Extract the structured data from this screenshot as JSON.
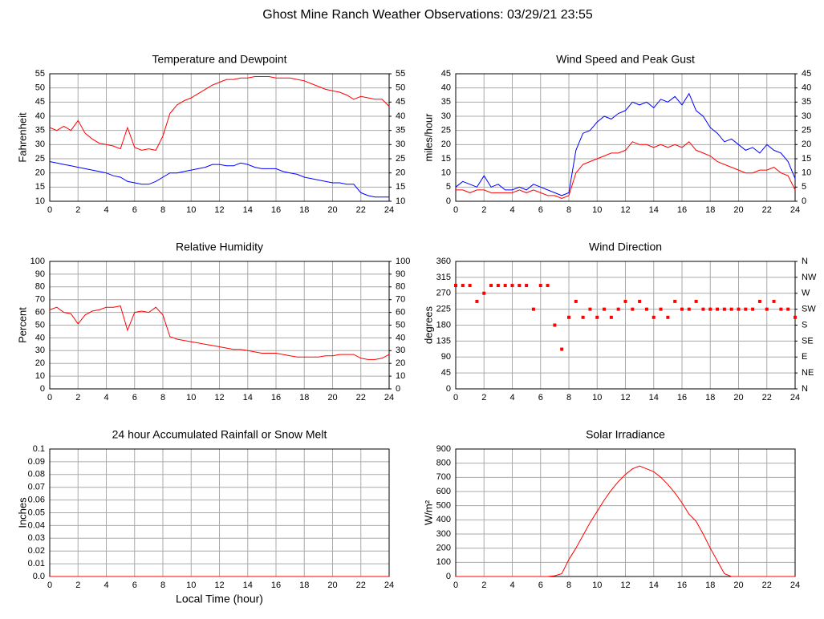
{
  "title": "Ghost Mine Ranch Weather Observations: 03/29/21 23:55",
  "chart_data": [
    {
      "type": "line",
      "title": "Temperature and Dewpoint",
      "ylabel": "Fahrenheit",
      "x": [
        0,
        0.5,
        1,
        1.5,
        2,
        2.5,
        3,
        3.5,
        4,
        4.5,
        5,
        5.5,
        6,
        6.5,
        7,
        7.5,
        8,
        8.5,
        9,
        9.5,
        10,
        10.5,
        11,
        11.5,
        12,
        12.5,
        13,
        13.5,
        14,
        14.5,
        15,
        15.5,
        16,
        16.5,
        17,
        17.5,
        18,
        18.5,
        19,
        19.5,
        20,
        20.5,
        21,
        21.5,
        22,
        22.5,
        23,
        23.5,
        24
      ],
      "series": [
        {
          "color": "#ff0000",
          "values": [
            36,
            35,
            36.5,
            35,
            38.5,
            34,
            32,
            30.5,
            30,
            29.5,
            28.5,
            36,
            29,
            28,
            28.5,
            28,
            33,
            41,
            44,
            45.5,
            46.5,
            48,
            49.5,
            51,
            52,
            53,
            53,
            53.5,
            53.5,
            54,
            54,
            54,
            53.5,
            53.5,
            53.5,
            53,
            52.5,
            51.5,
            50.5,
            49.5,
            49,
            48.5,
            47.5,
            46,
            47,
            46.5,
            46,
            46,
            43.5
          ]
        },
        {
          "color": "#0000ff",
          "values": [
            24,
            23.5,
            23,
            22.5,
            22,
            21.5,
            21,
            20.5,
            20,
            19,
            18.5,
            17,
            16.5,
            16,
            16,
            17,
            18.5,
            20,
            20,
            20.5,
            21,
            21.5,
            22,
            23,
            23,
            22.5,
            22.5,
            23.5,
            23,
            22,
            21.5,
            21.5,
            21.5,
            20.5,
            20,
            19.5,
            18.5,
            18,
            17.5,
            17,
            16.5,
            16.5,
            16,
            16,
            13,
            12,
            11.5,
            11.5,
            11.5
          ]
        }
      ],
      "xlim": [
        0,
        24
      ],
      "xticks": [
        0,
        2,
        4,
        6,
        8,
        10,
        12,
        14,
        16,
        18,
        20,
        22,
        24
      ],
      "ylim": [
        10,
        55
      ],
      "yticks": [
        10,
        15,
        20,
        25,
        30,
        35,
        40,
        45,
        50,
        55
      ],
      "y2lim": [
        10,
        55
      ],
      "y2ticks": [
        10,
        15,
        20,
        25,
        30,
        35,
        40,
        45,
        50,
        55
      ],
      "grid": true
    },
    {
      "type": "line",
      "title": "Wind Speed and Peak Gust",
      "ylabel": "miles/hour",
      "x": [
        0,
        0.5,
        1,
        1.5,
        2,
        2.5,
        3,
        3.5,
        4,
        4.5,
        5,
        5.5,
        6,
        6.5,
        7,
        7.5,
        8,
        8.5,
        9,
        9.5,
        10,
        10.5,
        11,
        11.5,
        12,
        12.5,
        13,
        13.5,
        14,
        14.5,
        15,
        15.5,
        16,
        16.5,
        17,
        17.5,
        18,
        18.5,
        19,
        19.5,
        20,
        20.5,
        21,
        21.5,
        22,
        22.5,
        23,
        23.5,
        24
      ],
      "series": [
        {
          "color": "#0000ff",
          "values": [
            5,
            7,
            6,
            5,
            9,
            5,
            6,
            4,
            4,
            5,
            4,
            6,
            5,
            4,
            3,
            2,
            3,
            18,
            24,
            25,
            28,
            30,
            29,
            31,
            32,
            35,
            34,
            35,
            33,
            36,
            35,
            37,
            34,
            38,
            32,
            30,
            26,
            24,
            21,
            22,
            20,
            18,
            19,
            17,
            20,
            18,
            17,
            14,
            8
          ]
        },
        {
          "color": "#ff0000",
          "values": [
            4,
            4,
            3,
            4,
            4,
            3,
            3,
            3,
            3,
            4,
            3,
            4,
            3,
            2,
            2,
            1,
            2,
            10,
            13,
            14,
            15,
            16,
            17,
            17,
            18,
            21,
            20,
            20,
            19,
            20,
            19,
            20,
            19,
            21,
            18,
            17,
            16,
            14,
            13,
            12,
            11,
            10,
            10,
            11,
            11,
            12,
            10,
            9,
            4
          ]
        }
      ],
      "xlim": [
        0,
        24
      ],
      "xticks": [
        0,
        2,
        4,
        6,
        8,
        10,
        12,
        14,
        16,
        18,
        20,
        22,
        24
      ],
      "ylim": [
        0,
        45
      ],
      "yticks": [
        0,
        5,
        10,
        15,
        20,
        25,
        30,
        35,
        40,
        45
      ],
      "y2lim": [
        0,
        45
      ],
      "y2ticks": [
        0,
        5,
        10,
        15,
        20,
        25,
        30,
        35,
        40,
        45
      ],
      "grid": true
    },
    {
      "type": "line",
      "title": "Relative Humidity",
      "ylabel": "Percent",
      "x": [
        0,
        0.5,
        1,
        1.5,
        2,
        2.5,
        3,
        3.5,
        4,
        4.5,
        5,
        5.5,
        6,
        6.5,
        7,
        7.5,
        8,
        8.5,
        9,
        9.5,
        10,
        10.5,
        11,
        11.5,
        12,
        12.5,
        13,
        13.5,
        14,
        14.5,
        15,
        15.5,
        16,
        16.5,
        17,
        17.5,
        18,
        18.5,
        19,
        19.5,
        20,
        20.5,
        21,
        21.5,
        22,
        22.5,
        23,
        23.5,
        24
      ],
      "series": [
        {
          "color": "#ff0000",
          "values": [
            62,
            64,
            60,
            59,
            51,
            58,
            61,
            62,
            64,
            64,
            65,
            46,
            60,
            61,
            60,
            64,
            58,
            41,
            39,
            38,
            37,
            36,
            35,
            34,
            33,
            32,
            31,
            31,
            30,
            29,
            28,
            28,
            28,
            27,
            26,
            25,
            25,
            25,
            25,
            26,
            26,
            27,
            27,
            27,
            24,
            23,
            23,
            24,
            27
          ]
        }
      ],
      "xlim": [
        0,
        24
      ],
      "xticks": [
        0,
        2,
        4,
        6,
        8,
        10,
        12,
        14,
        16,
        18,
        20,
        22,
        24
      ],
      "ylim": [
        0,
        100
      ],
      "yticks": [
        0,
        10,
        20,
        30,
        40,
        50,
        60,
        70,
        80,
        90,
        100
      ],
      "y2lim": [
        0,
        100
      ],
      "y2ticks": [
        0,
        10,
        20,
        30,
        40,
        50,
        60,
        70,
        80,
        90,
        100
      ],
      "grid": true
    },
    {
      "type": "scatter",
      "title": "Wind Direction",
      "ylabel": "degrees",
      "x": [
        0,
        0.5,
        1,
        1.5,
        2,
        2.5,
        3,
        3.5,
        4,
        4.5,
        5,
        5.5,
        6,
        6.5,
        7,
        7.5,
        8,
        8.5,
        9,
        9.5,
        10,
        10.5,
        11,
        11.5,
        12,
        12.5,
        13,
        13.5,
        14,
        14.5,
        15,
        15.5,
        16,
        16.5,
        17,
        17.5,
        18,
        18.5,
        19,
        19.5,
        20,
        20.5,
        21,
        21.5,
        22,
        22.5,
        23,
        23.5,
        24
      ],
      "series": [
        {
          "color": "#ff0000",
          "values": [
            292,
            292,
            292,
            247,
            270,
            292,
            292,
            292,
            292,
            292,
            292,
            225,
            292,
            292,
            180,
            112,
            202,
            247,
            202,
            225,
            202,
            225,
            202,
            225,
            247,
            225,
            247,
            225,
            202,
            225,
            202,
            247,
            225,
            225,
            247,
            225,
            225,
            225,
            225,
            225,
            225,
            225,
            225,
            247,
            225,
            247,
            225,
            225,
            202
          ]
        }
      ],
      "xlim": [
        0,
        24
      ],
      "xticks": [
        0,
        2,
        4,
        6,
        8,
        10,
        12,
        14,
        16,
        18,
        20,
        22,
        24
      ],
      "ylim": [
        0,
        360
      ],
      "yticks": [
        0,
        45,
        90,
        135,
        180,
        225,
        270,
        315,
        360
      ],
      "y2lim": [
        0,
        360
      ],
      "y2ticks": [
        {
          "value": 0,
          "label": "N"
        },
        {
          "value": 45,
          "label": "NE"
        },
        {
          "value": 90,
          "label": "E"
        },
        {
          "value": 135,
          "label": "SE"
        },
        {
          "value": 180,
          "label": "S"
        },
        {
          "value": 225,
          "label": "SW"
        },
        {
          "value": 270,
          "label": "W"
        },
        {
          "value": 315,
          "label": "NW"
        },
        {
          "value": 360,
          "label": "N"
        }
      ],
      "grid": true
    },
    {
      "type": "line",
      "title": "24 hour Accumulated Rainfall or Snow Melt",
      "ylabel": "Inches",
      "xlabel": "Local Time (hour)",
      "x": [
        0,
        24
      ],
      "series": [
        {
          "color": "#ff0000",
          "values": [
            0,
            0
          ]
        }
      ],
      "xlim": [
        0,
        24
      ],
      "xticks": [
        0,
        2,
        4,
        6,
        8,
        10,
        12,
        14,
        16,
        18,
        20,
        22,
        24
      ],
      "ylim": [
        0,
        0.1
      ],
      "yticks": [
        {
          "value": 0,
          "label": "0.0"
        },
        0.01,
        0.02,
        0.03,
        0.04,
        0.05,
        0.06,
        0.07,
        0.08,
        0.09,
        0.1
      ],
      "grid": true
    },
    {
      "type": "line",
      "title": "Solar Irradiance",
      "ylabel": "W/m²",
      "x": [
        0,
        0.5,
        1,
        1.5,
        2,
        2.5,
        3,
        3.5,
        4,
        4.5,
        5,
        5.5,
        6,
        6.5,
        7,
        7.5,
        8,
        8.5,
        9,
        9.5,
        10,
        10.5,
        11,
        11.5,
        12,
        12.5,
        13,
        13.5,
        14,
        14.5,
        15,
        15.5,
        16,
        16.5,
        17,
        17.5,
        18,
        18.5,
        19,
        19.5,
        20,
        20.5,
        21,
        21.5,
        22,
        22.5,
        23,
        23.5,
        24
      ],
      "series": [
        {
          "color": "#ff0000",
          "values": [
            0,
            0,
            0,
            0,
            0,
            0,
            0,
            0,
            0,
            0,
            0,
            0,
            0,
            0,
            5,
            20,
            120,
            200,
            290,
            380,
            460,
            540,
            610,
            670,
            720,
            760,
            780,
            760,
            740,
            700,
            650,
            590,
            520,
            440,
            390,
            300,
            200,
            110,
            20,
            0,
            0,
            0,
            0,
            0,
            0,
            0,
            0,
            0,
            0
          ]
        }
      ],
      "xlim": [
        0,
        24
      ],
      "xticks": [
        0,
        2,
        4,
        6,
        8,
        10,
        12,
        14,
        16,
        18,
        20,
        22,
        24
      ],
      "ylim": [
        0,
        900
      ],
      "yticks": [
        0,
        100,
        200,
        300,
        400,
        500,
        600,
        700,
        800,
        900
      ],
      "grid": true
    }
  ]
}
